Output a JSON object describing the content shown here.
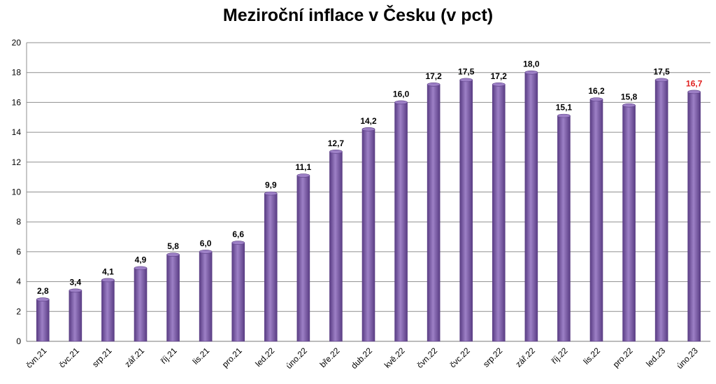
{
  "chart_data": {
    "type": "bar",
    "title": "Meziroční inflace v Česku (v pct)",
    "xlabel": "",
    "ylabel": "",
    "ylim": [
      0,
      20
    ],
    "yticks": [
      0,
      2,
      4,
      6,
      8,
      10,
      12,
      14,
      16,
      18,
      20
    ],
    "grid": true,
    "legend": "none",
    "categories": [
      "čvn.21",
      "čvc.21",
      "srp.21",
      "zář.21",
      "říj.21",
      "lis.21",
      "pro.21",
      "led.22",
      "úno.22",
      "bře.22",
      "dub.22",
      "kvě.22",
      "čvn.22",
      "čvc.22",
      "srp.22",
      "zář.22",
      "říj.22",
      "lis.22",
      "pro.22",
      "led.23",
      "úno.23"
    ],
    "values": [
      2.8,
      3.4,
      4.1,
      4.9,
      5.8,
      6.0,
      6.6,
      9.9,
      11.1,
      12.7,
      14.2,
      16.0,
      17.2,
      17.5,
      17.2,
      18.0,
      15.1,
      16.2,
      15.8,
      17.5,
      16.7
    ],
    "data_labels": [
      "2,8",
      "3,4",
      "4,1",
      "4,9",
      "5,8",
      "6,0",
      "6,6",
      "9,9",
      "11,1",
      "12,7",
      "14,2",
      "16,0",
      "17,2",
      "17,5",
      "17,2",
      "18,0",
      "15,1",
      "16,2",
      "15,8",
      "17,5",
      "16,7"
    ],
    "highlight_index": 20,
    "colors": {
      "bar": "#7b5aa6",
      "bar_light": "#9d80c6",
      "bar_dark": "#5a3d84",
      "grid": "#8f8f8f",
      "label": "#000000",
      "highlight_label": "#e0201e"
    }
  }
}
